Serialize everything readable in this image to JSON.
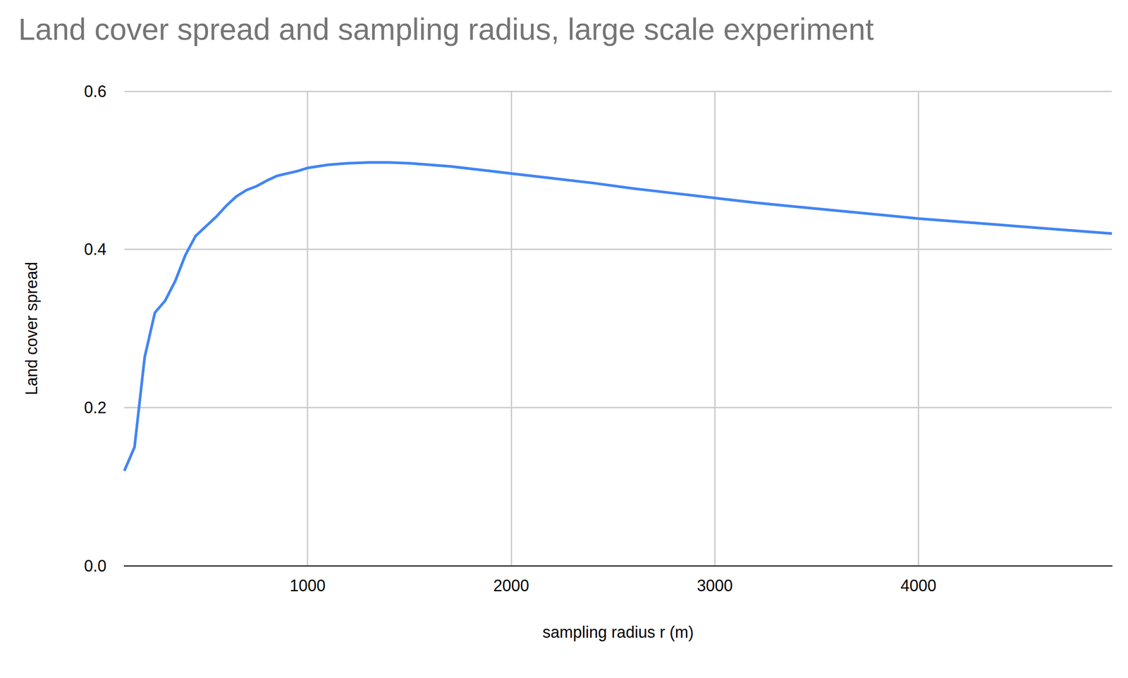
{
  "chart_data": {
    "type": "line",
    "title": "Land cover spread and sampling radius, large scale experiment",
    "x_label": "sampling radius r (m)",
    "y_label": "Land cover spread",
    "x": [
      100,
      150,
      200,
      250,
      300,
      350,
      400,
      450,
      500,
      550,
      600,
      650,
      700,
      750,
      800,
      850,
      900,
      950,
      1000,
      1100,
      1200,
      1300,
      1400,
      1500,
      1600,
      1700,
      1800,
      1900,
      2000,
      2200,
      2400,
      2600,
      2800,
      3000,
      3200,
      3400,
      3600,
      3800,
      4000,
      4200,
      4400,
      4600,
      4800,
      4950
    ],
    "values": [
      0.12,
      0.15,
      0.264,
      0.32,
      0.335,
      0.36,
      0.393,
      0.417,
      0.429,
      0.441,
      0.455,
      0.467,
      0.475,
      0.48,
      0.487,
      0.493,
      0.496,
      0.499,
      0.503,
      0.507,
      0.509,
      0.51,
      0.51,
      0.509,
      0.507,
      0.505,
      0.502,
      0.499,
      0.496,
      0.49,
      0.484,
      0.477,
      0.471,
      0.465,
      0.459,
      0.454,
      0.449,
      0.444,
      0.439,
      0.435,
      0.431,
      0.427,
      0.423,
      0.42
    ],
    "color": "#4285f4",
    "xlim": [
      100,
      4950
    ],
    "xticks": [
      1000,
      2000,
      3000,
      4000
    ],
    "ylim": [
      0,
      0.6
    ],
    "yticks": [
      {
        "value": 0,
        "label": "0.0"
      },
      0.2,
      0.4,
      0.6
    ],
    "grid": true
  }
}
